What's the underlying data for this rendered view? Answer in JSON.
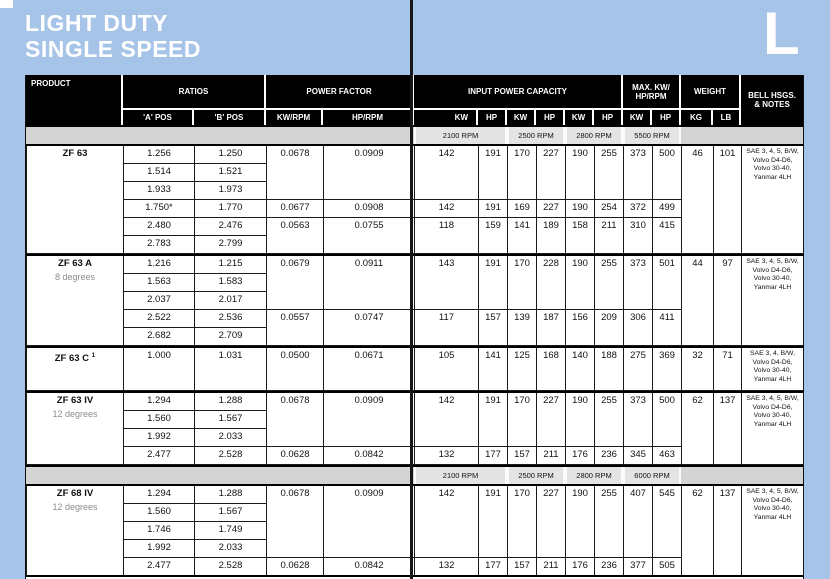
{
  "page": {
    "title_line1": "LIGHT DUTY",
    "title_line2": "SINGLE SPEED",
    "corner_letter": "L"
  },
  "colors": {
    "page_blue": "#a6c3e8",
    "header_bg": "#000000",
    "band_gray": "#d4d4d4",
    "band_cell_gray": "#e4e4e4",
    "table_line": "#1a1a1a"
  },
  "table": {
    "header": {
      "product": "PRODUCT",
      "ratios": "RATIOS",
      "a_pos": "'A' POS",
      "b_pos": "'B' POS",
      "power_factor": "POWER FACTOR",
      "kw_rpm": "KW/RPM",
      "hp_rpm": "HP/RPM",
      "input_power_capacity": "INPUT POWER CAPACITY",
      "cap_sub": [
        "KW",
        "HP",
        "KW",
        "HP",
        "KW",
        "HP"
      ],
      "max_line1": "MAX. KW/",
      "max_line2": "HP/RPM",
      "max_sub": [
        "KW",
        "HP"
      ],
      "weight": "WEIGHT",
      "kg": "KG",
      "lb": "LB",
      "notes_line1": "BELL HSGS.",
      "notes_line2": "& NOTES"
    },
    "sections": [
      {
        "type": "band",
        "rpms": [
          "2100 RPM",
          "2500 RPM",
          "2800 RPM",
          "5500 RPM"
        ]
      },
      {
        "type": "block",
        "product": "ZF 63",
        "subtitle": "",
        "sup": "",
        "rows": [
          {
            "a": "1.256",
            "b": "1.250"
          },
          {
            "a": "1.514",
            "b": "1.521"
          },
          {
            "a": "1.933",
            "b": "1.973"
          },
          {
            "a": "1.750*",
            "b": "1.770"
          },
          {
            "a": "2.480",
            "b": "2.476"
          },
          {
            "a": "2.783",
            "b": "2.799"
          }
        ],
        "groups": [
          {
            "start": 0,
            "span": 3,
            "kw_rpm": "0.0678",
            "hp_rpm": "0.0909",
            "capacity": [
              "142",
              "191",
              "170",
              "227",
              "190",
              "255",
              "373",
              "500"
            ]
          },
          {
            "start": 3,
            "span": 1,
            "kw_rpm": "0.0677",
            "hp_rpm": "0.0908",
            "capacity": [
              "142",
              "191",
              "169",
              "227",
              "190",
              "254",
              "372",
              "499"
            ]
          },
          {
            "start": 4,
            "span": 2,
            "kw_rpm": "0.0563",
            "hp_rpm": "0.0755",
            "capacity": [
              "118",
              "159",
              "141",
              "189",
              "158",
              "211",
              "310",
              "415"
            ]
          }
        ],
        "weight_kg": "46",
        "weight_lb": "101",
        "notes": [
          "SAE 3, 4, 5, B/W,",
          "Volvo D4-D6,",
          "Volvo 30-40,",
          "Yanmar 4LH"
        ]
      },
      {
        "type": "block",
        "product": "ZF 63 A",
        "subtitle": "8 degrees",
        "sup": "",
        "rows": [
          {
            "a": "1.216",
            "b": "1.215"
          },
          {
            "a": "1.563",
            "b": "1.583"
          },
          {
            "a": "2.037",
            "b": "2.017"
          },
          {
            "a": "2.522",
            "b": "2.536"
          },
          {
            "a": "2.682",
            "b": "2.709"
          }
        ],
        "groups": [
          {
            "start": 0,
            "span": 3,
            "kw_rpm": "0.0679",
            "hp_rpm": "0.0911",
            "capacity": [
              "143",
              "191",
              "170",
              "228",
              "190",
              "255",
              "373",
              "501"
            ]
          },
          {
            "start": 3,
            "span": 2,
            "kw_rpm": "0.0557",
            "hp_rpm": "0.0747",
            "capacity": [
              "117",
              "157",
              "139",
              "187",
              "156",
              "209",
              "306",
              "411"
            ]
          }
        ],
        "weight_kg": "44",
        "weight_lb": "97",
        "notes": [
          "SAE 3, 4, 5, B/W,",
          "Volvo D4-D6,",
          "Volvo 30-40,",
          "Yanmar 4LH"
        ]
      },
      {
        "type": "block",
        "product": "ZF 63 C",
        "subtitle": "",
        "sup": "1",
        "rows": [
          {
            "a": "1.000",
            "b": "1.031"
          }
        ],
        "groups": [
          {
            "start": 0,
            "span": 1,
            "kw_rpm": "0.0500",
            "hp_rpm": "0.0671",
            "capacity": [
              "105",
              "141",
              "125",
              "168",
              "140",
              "188",
              "275",
              "369"
            ]
          }
        ],
        "weight_kg": "32",
        "weight_lb": "71",
        "notes": [
          "SAE 3, 4, B/W,",
          "Volvo D4-D6,",
          "Volvo 30-40,",
          "Yanmar 4LH"
        ]
      },
      {
        "type": "block",
        "product": "ZF 63 IV",
        "subtitle": "12 degrees",
        "sup": "",
        "rows": [
          {
            "a": "1.294",
            "b": "1.288"
          },
          {
            "a": "1.560",
            "b": "1.567"
          },
          {
            "a": "1.992",
            "b": "2.033"
          },
          {
            "a": "2.477",
            "b": "2.528"
          }
        ],
        "groups": [
          {
            "start": 0,
            "span": 3,
            "kw_rpm": "0.0678",
            "hp_rpm": "0.0909",
            "capacity": [
              "142",
              "191",
              "170",
              "227",
              "190",
              "255",
              "373",
              "500"
            ]
          },
          {
            "start": 3,
            "span": 1,
            "kw_rpm": "0.0628",
            "hp_rpm": "0.0842",
            "capacity": [
              "132",
              "177",
              "157",
              "211",
              "176",
              "236",
              "345",
              "463"
            ]
          }
        ],
        "weight_kg": "62",
        "weight_lb": "137",
        "notes": [
          "SAE 3, 4, 5, B/W,",
          "Volvo D4-D6,",
          "Volvo 30-40,",
          "Yanmar 4LH"
        ]
      },
      {
        "type": "band",
        "rpms": [
          "2100 RPM",
          "2500 RPM",
          "2800 RPM",
          "6000 RPM"
        ]
      },
      {
        "type": "block",
        "product": "ZF 68 IV",
        "subtitle": "12 degrees",
        "sup": "",
        "rows": [
          {
            "a": "1.294",
            "b": "1.288"
          },
          {
            "a": "1.560",
            "b": "1.567"
          },
          {
            "a": "1.746",
            "b": "1.749"
          },
          {
            "a": "1.992",
            "b": "2.033"
          },
          {
            "a": "2.477",
            "b": "2.528"
          }
        ],
        "groups": [
          {
            "start": 0,
            "span": 4,
            "kw_rpm": "0.0678",
            "hp_rpm": "0.0909",
            "capacity": [
              "142",
              "191",
              "170",
              "227",
              "190",
              "255",
              "407",
              "545"
            ]
          },
          {
            "start": 4,
            "span": 1,
            "kw_rpm": "0.0628",
            "hp_rpm": "0.0842",
            "capacity": [
              "132",
              "177",
              "157",
              "211",
              "176",
              "236",
              "377",
              "505"
            ]
          }
        ],
        "weight_kg": "62",
        "weight_lb": "137",
        "notes": [
          "SAE 3, 4, 5, B/W,",
          "Volvo D4-D6,",
          "Volvo 30-40,",
          "Yanmar 4LH"
        ]
      }
    ]
  }
}
